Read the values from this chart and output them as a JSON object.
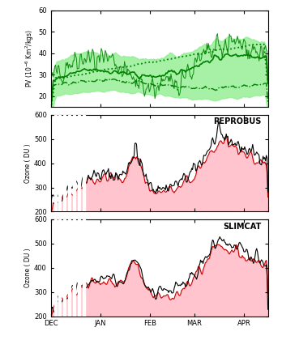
{
  "top_panel": {
    "ylabel": "PV (10$^{-6}$ Km$^2$/kgs)",
    "ylim": [
      15,
      60
    ],
    "yticks": [
      20,
      30,
      40,
      50,
      60
    ],
    "green_fill_color": "#90EE90",
    "green_line_color": "#008000"
  },
  "mid_panel": {
    "label": "REPROBUS",
    "ylabel": "Ozone ( DU )",
    "ylim": [
      200,
      600
    ],
    "yticks": [
      200,
      300,
      400,
      500,
      600
    ]
  },
  "bot_panel": {
    "label": "SLIMCAT",
    "ylabel": "Ozone ( DU )",
    "ylim": [
      200,
      600
    ],
    "yticks": [
      200,
      300,
      400,
      500,
      600
    ]
  },
  "xlabels": [
    "DEC",
    "JAN",
    "FEB",
    "MAR",
    "APR"
  ],
  "month_ticks": [
    0,
    31,
    62,
    90,
    121
  ],
  "n_days": 136,
  "pink_fill_color": "#FFB6C1",
  "red_line_color": "#CC0000",
  "black_line_color": "#000000",
  "background_color": "#FFFFFF"
}
